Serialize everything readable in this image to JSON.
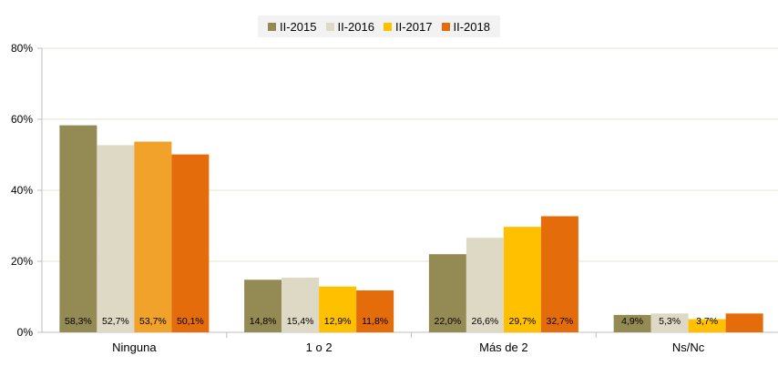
{
  "chart_data": {
    "type": "bar",
    "categories": [
      "Ninguna",
      "1 o 2",
      "Más de 2",
      "Ns/Nc"
    ],
    "series": [
      {
        "name": "II-2015",
        "color": "#948a54",
        "values": [
          58.3,
          14.8,
          22.0,
          4.9
        ],
        "labels": [
          "58,3%",
          "14,8%",
          "22,0%",
          "4,9%"
        ]
      },
      {
        "name": "II-2016",
        "color": "#ddd9c4",
        "values": [
          52.7,
          15.4,
          26.6,
          5.3
        ],
        "labels": [
          "52,7%",
          "15,4%",
          "26,6%",
          "5,3%"
        ]
      },
      {
        "name": "II-2017",
        "color": "#ffc000",
        "values": [
          53.7,
          12.9,
          29.7,
          3.7
        ],
        "labels": [
          "53,7%",
          "12,9%",
          "29,7%",
          "3,7%"
        ],
        "point_colors": [
          "#f0a22a",
          null,
          null,
          null
        ]
      },
      {
        "name": "II-2018",
        "color": "#e46c0a",
        "values": [
          50.1,
          11.8,
          32.7,
          5.3
        ],
        "labels": [
          "50,1%",
          "11,8%",
          "32,7%",
          ""
        ]
      }
    ],
    "ylim": [
      0,
      80
    ],
    "yticks": [
      0,
      20,
      40,
      60,
      80
    ],
    "ytick_labels": [
      "0%",
      "20%",
      "40%",
      "60%",
      "80%"
    ],
    "grid": true,
    "legend": "top-center"
  }
}
